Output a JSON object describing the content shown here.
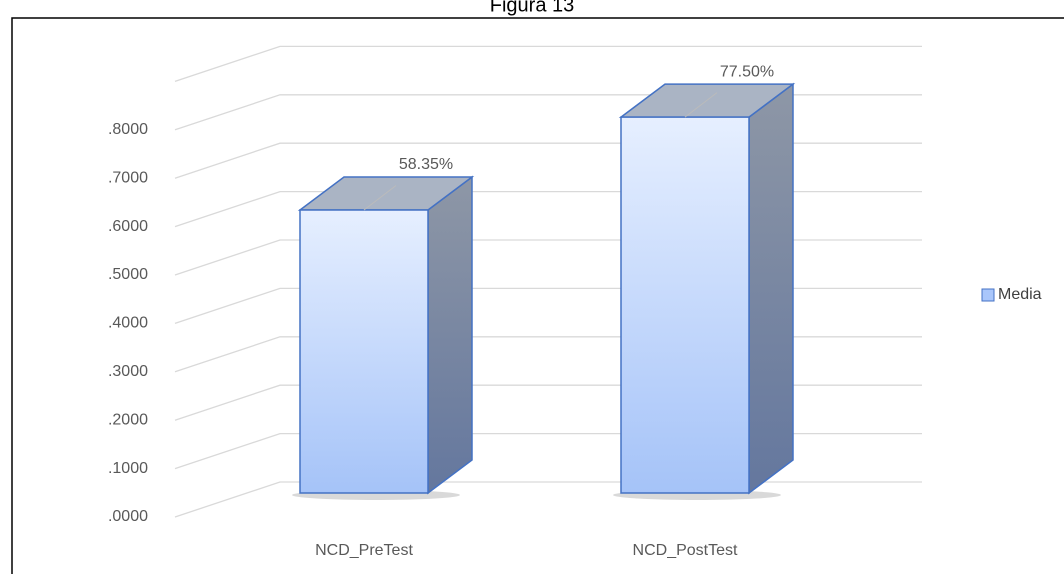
{
  "chart_data": {
    "type": "bar3d",
    "title": "Figura 13",
    "categories": [
      "NCD_PreTest",
      "NCD_PostTest"
    ],
    "series": [
      {
        "name": "Media",
        "color": "#a9c6fb",
        "values": [
          0.5835,
          0.775
        ],
        "value_labels": [
          "58.35%",
          "77.50%"
        ]
      }
    ],
    "ylim": [
      0,
      0.9
    ],
    "yticks": [
      {
        "value": 0,
        "label": ".0000"
      },
      {
        "value": 0.1,
        "label": ".1000"
      },
      {
        "value": 0.2,
        "label": ".2000"
      },
      {
        "value": 0.3,
        "label": ".3000"
      },
      {
        "value": 0.4,
        "label": ".4000"
      },
      {
        "value": 0.5,
        "label": ".5000"
      },
      {
        "value": 0.6,
        "label": ".6000"
      },
      {
        "value": 0.7,
        "label": ".7000"
      },
      {
        "value": 0.8,
        "label": ".8000"
      }
    ],
    "grid": true,
    "legend": "right"
  }
}
